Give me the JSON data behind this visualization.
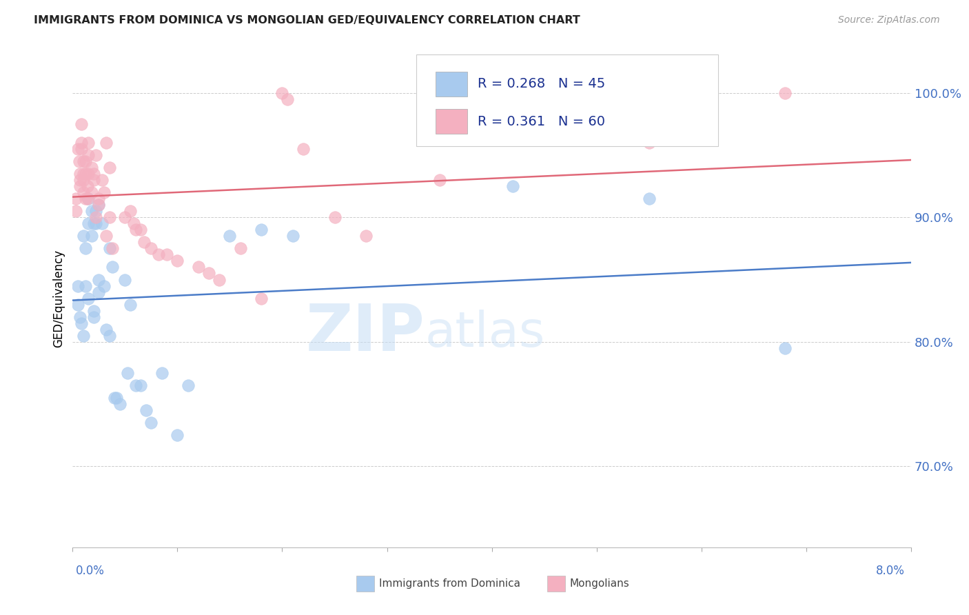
{
  "title": "IMMIGRANTS FROM DOMINICA VS MONGOLIAN GED/EQUIVALENCY CORRELATION CHART",
  "source": "Source: ZipAtlas.com",
  "ylabel": "GED/Equivalency",
  "legend_blue_label": "Immigrants from Dominica",
  "legend_pink_label": "Mongolians",
  "xlim": [
    0.0,
    8.0
  ],
  "ylim": [
    63.5,
    103.5
  ],
  "yticks": [
    70.0,
    80.0,
    90.0,
    100.0
  ],
  "ytick_labels": [
    "70.0%",
    "80.0%",
    "90.0%",
    "100.0%"
  ],
  "blue_color": "#A8CAEE",
  "pink_color": "#F4B0C0",
  "blue_line_color": "#4B7CC8",
  "pink_line_color": "#E06878",
  "watermark_zip": "ZIP",
  "watermark_atlas": "atlas",
  "blue_dots": [
    [
      0.05,
      84.5
    ],
    [
      0.05,
      83.0
    ],
    [
      0.07,
      82.0
    ],
    [
      0.08,
      81.5
    ],
    [
      0.1,
      80.5
    ],
    [
      0.1,
      88.5
    ],
    [
      0.12,
      87.5
    ],
    [
      0.12,
      84.5
    ],
    [
      0.15,
      83.5
    ],
    [
      0.15,
      91.5
    ],
    [
      0.15,
      89.5
    ],
    [
      0.18,
      88.5
    ],
    [
      0.18,
      90.5
    ],
    [
      0.2,
      89.5
    ],
    [
      0.2,
      82.5
    ],
    [
      0.2,
      82.0
    ],
    [
      0.22,
      90.5
    ],
    [
      0.22,
      89.5
    ],
    [
      0.25,
      85.0
    ],
    [
      0.25,
      84.0
    ],
    [
      0.25,
      91.0
    ],
    [
      0.28,
      89.5
    ],
    [
      0.3,
      84.5
    ],
    [
      0.32,
      81.0
    ],
    [
      0.35,
      80.5
    ],
    [
      0.35,
      87.5
    ],
    [
      0.38,
      86.0
    ],
    [
      0.4,
      75.5
    ],
    [
      0.42,
      75.5
    ],
    [
      0.45,
      75.0
    ],
    [
      0.5,
      85.0
    ],
    [
      0.52,
      77.5
    ],
    [
      0.55,
      83.0
    ],
    [
      0.6,
      76.5
    ],
    [
      0.65,
      76.5
    ],
    [
      0.7,
      74.5
    ],
    [
      0.75,
      73.5
    ],
    [
      0.85,
      77.5
    ],
    [
      1.0,
      72.5
    ],
    [
      1.1,
      76.5
    ],
    [
      1.5,
      88.5
    ],
    [
      1.8,
      89.0
    ],
    [
      2.1,
      88.5
    ],
    [
      4.2,
      92.5
    ],
    [
      5.5,
      91.5
    ],
    [
      6.8,
      79.5
    ]
  ],
  "pink_dots": [
    [
      0.03,
      91.5
    ],
    [
      0.03,
      90.5
    ],
    [
      0.05,
      95.5
    ],
    [
      0.06,
      94.5
    ],
    [
      0.07,
      93.5
    ],
    [
      0.07,
      93.0
    ],
    [
      0.07,
      92.5
    ],
    [
      0.08,
      97.5
    ],
    [
      0.08,
      96.0
    ],
    [
      0.08,
      95.5
    ],
    [
      0.1,
      94.5
    ],
    [
      0.1,
      93.5
    ],
    [
      0.1,
      93.0
    ],
    [
      0.1,
      92.0
    ],
    [
      0.12,
      91.5
    ],
    [
      0.12,
      94.5
    ],
    [
      0.12,
      93.5
    ],
    [
      0.14,
      92.5
    ],
    [
      0.14,
      91.5
    ],
    [
      0.15,
      96.0
    ],
    [
      0.15,
      95.0
    ],
    [
      0.15,
      93.5
    ],
    [
      0.18,
      92.0
    ],
    [
      0.18,
      94.0
    ],
    [
      0.2,
      93.5
    ],
    [
      0.2,
      93.0
    ],
    [
      0.22,
      90.0
    ],
    [
      0.22,
      95.0
    ],
    [
      0.25,
      91.5
    ],
    [
      0.25,
      91.0
    ],
    [
      0.28,
      93.0
    ],
    [
      0.3,
      92.0
    ],
    [
      0.32,
      96.0
    ],
    [
      0.32,
      88.5
    ],
    [
      0.35,
      94.0
    ],
    [
      0.35,
      90.0
    ],
    [
      0.38,
      87.5
    ],
    [
      0.5,
      90.0
    ],
    [
      0.55,
      90.5
    ],
    [
      0.58,
      89.5
    ],
    [
      0.6,
      89.0
    ],
    [
      0.65,
      89.0
    ],
    [
      0.68,
      88.0
    ],
    [
      0.75,
      87.5
    ],
    [
      0.82,
      87.0
    ],
    [
      0.9,
      87.0
    ],
    [
      1.0,
      86.5
    ],
    [
      1.2,
      86.0
    ],
    [
      1.3,
      85.5
    ],
    [
      1.4,
      85.0
    ],
    [
      1.6,
      87.5
    ],
    [
      1.8,
      83.5
    ],
    [
      2.0,
      100.0
    ],
    [
      2.05,
      99.5
    ],
    [
      2.2,
      95.5
    ],
    [
      2.5,
      90.0
    ],
    [
      2.8,
      88.5
    ],
    [
      3.5,
      93.0
    ],
    [
      5.5,
      96.0
    ],
    [
      6.8,
      100.0
    ]
  ],
  "background_color": "#FFFFFF",
  "grid_color": "#CCCCCC"
}
